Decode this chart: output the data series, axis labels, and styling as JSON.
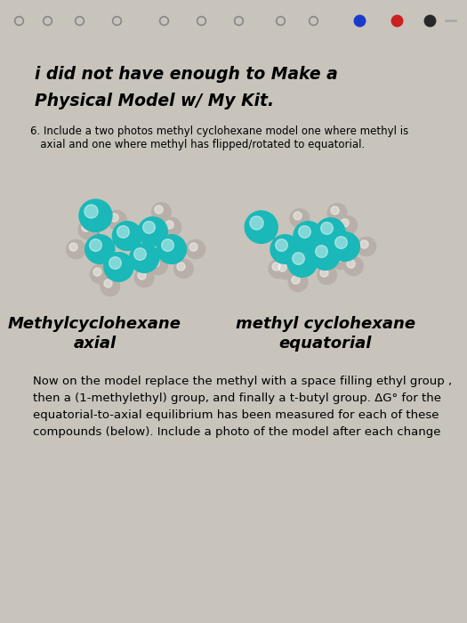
{
  "bg_color": "#c8c4bc",
  "toolbar_color": "#1e1e1e",
  "page_color": "#eceae4",
  "title_line1": "i did not have enough to Make a",
  "title_line2": "Physical Model w/ My Kit.",
  "title_fontsize": 13.5,
  "subtitle_line1": "6. Include a two photos methyl cyclohexane model one where methyl is",
  "subtitle_line2": "   axial and one where methyl has flipped/rotated to equatorial.",
  "subtitle_fontsize": 8.5,
  "label_axial_line1": "Methylcyclohexane",
  "label_axial_line2": "axial",
  "label_equatorial_line1": "methyl cyclohexane",
  "label_equatorial_line2": "equatorial",
  "label_fontsize": 13,
  "body_text": "Now on the model replace the methyl with a space filling ethyl group ,\nthen a (1-methylethyl) group, and finally a t-butyl group. ΔG° for the\nequatorial-to-axial equilibrium has been measured for each of these\ncompounds (below). Include a photo of the model after each change",
  "body_fontsize": 9.5,
  "teal_color": "#1ab8b8",
  "gray_color": "#b8b0a8",
  "bond_color": "#909090",
  "toolbar_icon_color": "#888888",
  "blue_dot": "#1a3acc",
  "red_dot": "#cc2020",
  "black_dot": "#282828"
}
